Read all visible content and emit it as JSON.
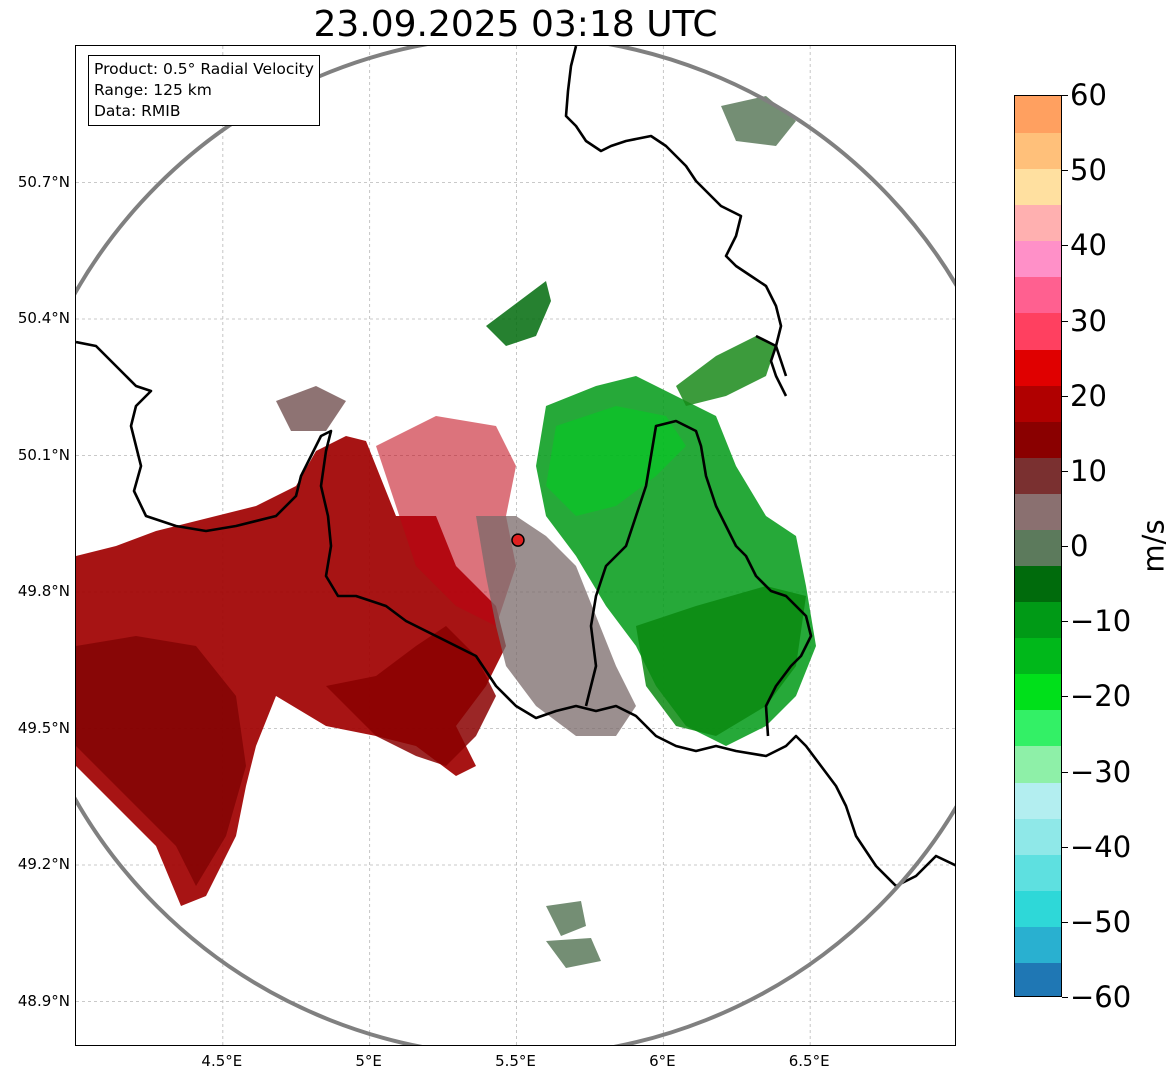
{
  "title": "23.09.2025 03:18 UTC",
  "info_box": {
    "product": "Product: 0.5° Radial Velocity",
    "range": "Range: 125 km",
    "data_source": "Data: RMIB"
  },
  "map": {
    "lon_range": [
      4.0,
      7.0
    ],
    "lat_range": [
      48.8,
      51.0
    ],
    "radar_site": {
      "lon": 5.505,
      "lat": 49.914
    },
    "x_ticks": [
      "4.5°E",
      "5°E",
      "5.5°E",
      "6°E",
      "6.5°E"
    ],
    "x_tick_values": [
      4.5,
      5.0,
      5.5,
      6.0,
      6.5
    ],
    "y_ticks": [
      "50.7°N",
      "50.4°N",
      "50.1°N",
      "49.8°N",
      "49.5°N",
      "49.2°N",
      "48.9°N"
    ],
    "y_tick_values": [
      50.7,
      50.4,
      50.1,
      49.8,
      49.5,
      49.2,
      48.9
    ],
    "grid": true,
    "range_ring_color": "#808080",
    "border_color": "#000000",
    "inbound_color": "#00a000",
    "outbound_color": "#a00000",
    "near_zero_color": "#7a6a6a"
  },
  "colorbar": {
    "unit": "m/s",
    "vmin": -60,
    "vmax": 60,
    "ticks": [
      "60",
      "50",
      "40",
      "30",
      "20",
      "10",
      "0",
      "−10",
      "−20",
      "−30",
      "−40",
      "−50",
      "−60"
    ],
    "tick_values": [
      60,
      50,
      40,
      30,
      20,
      10,
      0,
      -10,
      -20,
      -30,
      -40,
      -50,
      -60
    ],
    "colors_bottom_to_top": [
      "#1f77b4",
      "#29b0d0",
      "#2ed8d8",
      "#5ee0e0",
      "#8fe8e8",
      "#b3eef0",
      "#8ef0a8",
      "#33f066",
      "#00e01a",
      "#00b81a",
      "#009a16",
      "#006b0c",
      "#5c7a5c",
      "#8a7070",
      "#7a3030",
      "#8a0000",
      "#b00000",
      "#e00000",
      "#ff4060",
      "#ff6090",
      "#ff90c8",
      "#ffb0b0",
      "#ffe0a0",
      "#ffc07a",
      "#ffa060"
    ]
  }
}
